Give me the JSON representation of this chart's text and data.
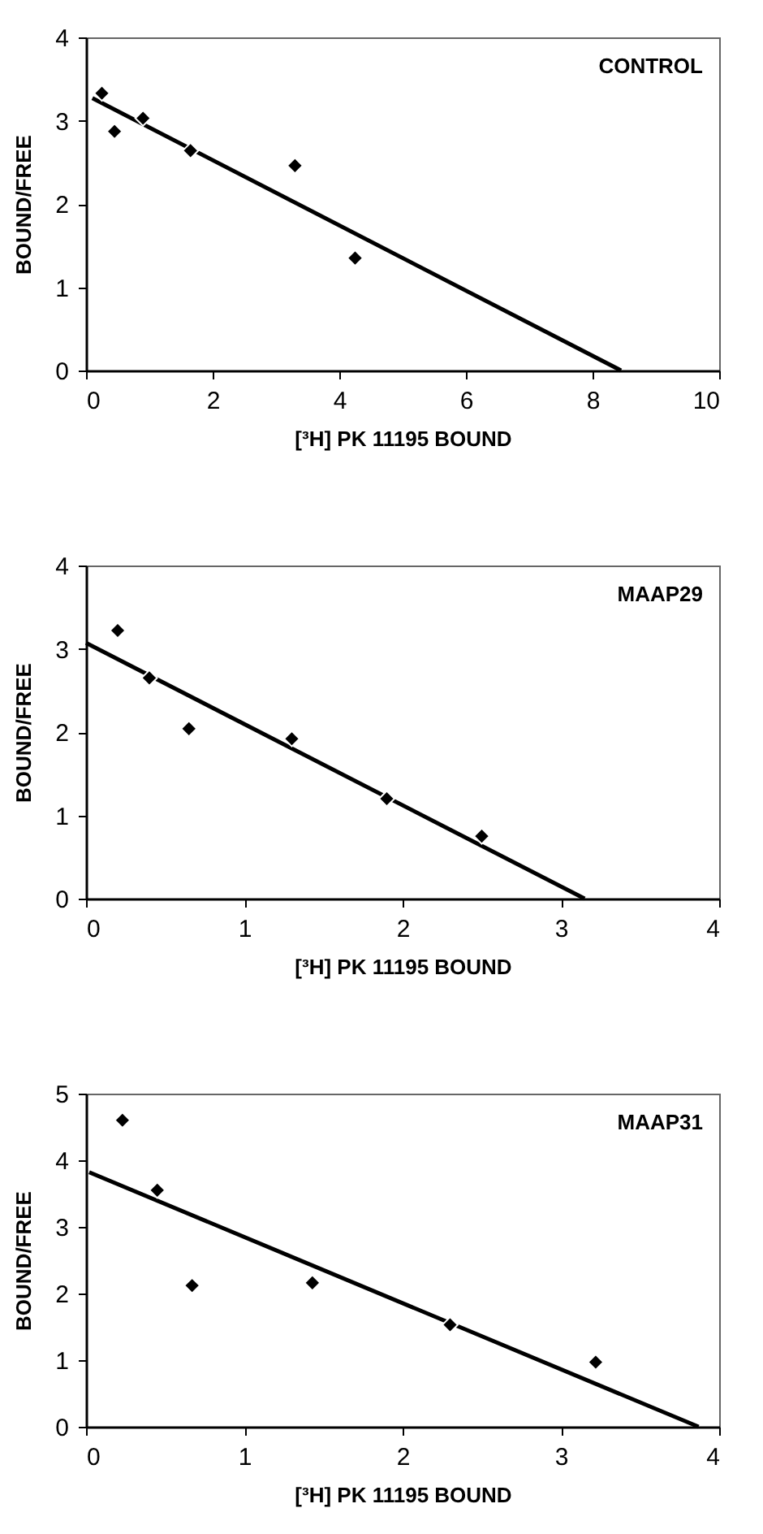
{
  "chart_data": [
    {
      "type": "scatter",
      "annotations": [
        "CONTROL"
      ],
      "xlabel": "[³H] PK 11195 BOUND",
      "ylabel": "BOUND/FREE",
      "xlim": [
        0,
        10
      ],
      "xticks": [
        0,
        2,
        4,
        6,
        8,
        10
      ],
      "ylim": [
        0,
        4
      ],
      "yticks": [
        0,
        1,
        2,
        3,
        4
      ],
      "grid": false,
      "series": [
        {
          "marker": "diamond",
          "color": "#000000",
          "x": [
            0.25,
            0.45,
            0.9,
            1.65,
            3.3,
            4.25
          ],
          "values": [
            3.33,
            2.87,
            3.03,
            2.64,
            2.46,
            1.35
          ]
        },
        {
          "type": "line",
          "color": "#000000",
          "x": [
            0.1,
            8.45
          ],
          "values": [
            3.27,
            0
          ]
        }
      ]
    },
    {
      "type": "scatter",
      "annotations": [
        "MAAP29"
      ],
      "xlabel": "[³H] PK 11195 BOUND",
      "ylabel": "BOUND/FREE",
      "xlim": [
        0,
        4
      ],
      "xticks": [
        0,
        1,
        2,
        3,
        4
      ],
      "ylim": [
        0,
        4
      ],
      "yticks": [
        0,
        1,
        2,
        3,
        4
      ],
      "grid": false,
      "series": [
        {
          "marker": "diamond",
          "color": "#000000",
          "x": [
            0.2,
            0.4,
            0.65,
            1.3,
            1.9,
            2.5
          ],
          "values": [
            3.22,
            2.65,
            2.04,
            1.92,
            1.2,
            0.75
          ]
        },
        {
          "type": "line",
          "color": "#000000",
          "x": [
            0,
            3.15
          ],
          "values": [
            3.07,
            0
          ]
        }
      ]
    },
    {
      "type": "scatter",
      "annotations": [
        "MAAP31"
      ],
      "xlabel": "[³H] PK 11195 BOUND",
      "ylabel": "BOUND/FREE",
      "xlim": [
        0,
        4
      ],
      "xticks": [
        0,
        1,
        2,
        3,
        4
      ],
      "ylim": [
        0,
        5
      ],
      "yticks": [
        0,
        1,
        2,
        3,
        4,
        5
      ],
      "grid": false,
      "series": [
        {
          "marker": "diamond",
          "color": "#000000",
          "x": [
            0.23,
            0.45,
            0.67,
            1.43,
            2.3,
            3.22
          ],
          "values": [
            4.6,
            3.55,
            2.12,
            2.16,
            1.53,
            0.97
          ]
        },
        {
          "type": "line",
          "color": "#000000",
          "x": [
            0.02,
            3.87
          ],
          "values": [
            3.82,
            0
          ]
        }
      ]
    }
  ]
}
